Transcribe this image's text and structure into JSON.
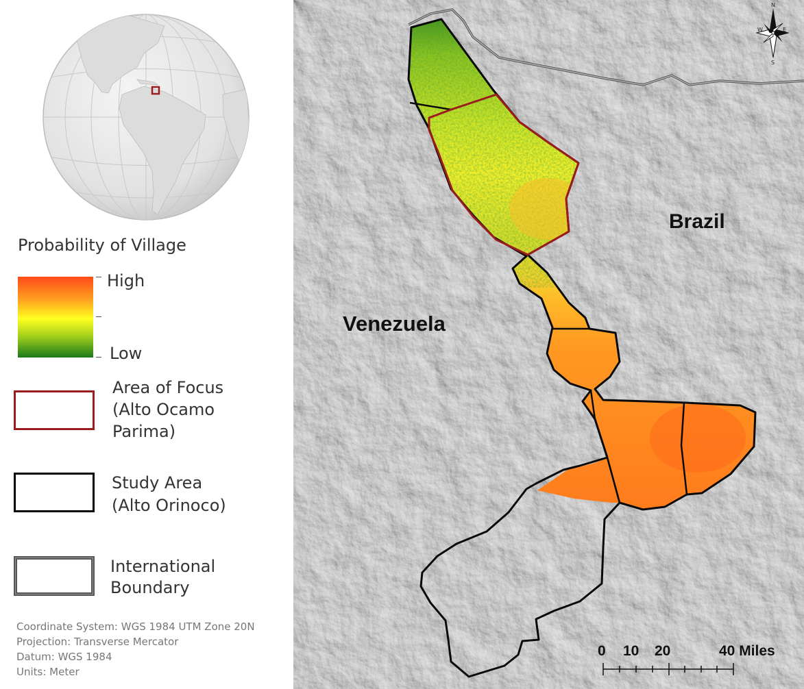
{
  "legend": {
    "probability_title": "Probability of Village",
    "high_label": "High",
    "low_label": "Low",
    "ramp_colors": [
      "#ff4a1a",
      "#ffa020",
      "#ffff20",
      "#9ccc1c",
      "#1a7a1a"
    ],
    "focus_area_label_lines": [
      "Area of Focus",
      "(Alto Ocamo",
      "Parima)"
    ],
    "focus_area_color": "#9b1c1c",
    "study_area_label_lines": [
      "Study Area",
      "(Alto Orinoco)"
    ],
    "study_area_color": "#000000",
    "boundary_label_lines": [
      "International",
      "Boundary"
    ]
  },
  "metadata_lines": [
    "Coordinate System: WGS 1984 UTM Zone 20N",
    "Projection: Transverse Mercator",
    "Datum: WGS 1984",
    "Units: Meter"
  ],
  "map": {
    "country_labels": [
      "Brazil",
      "Venezuela"
    ],
    "north_arrow_letters": {
      "n": "N",
      "s": "S",
      "e": "E",
      "w": "W"
    },
    "scale_bar_labels": [
      "0",
      "10",
      "20",
      "40 Miles"
    ]
  },
  "locator_globe": {
    "marker_color": "#9b1c1c"
  }
}
